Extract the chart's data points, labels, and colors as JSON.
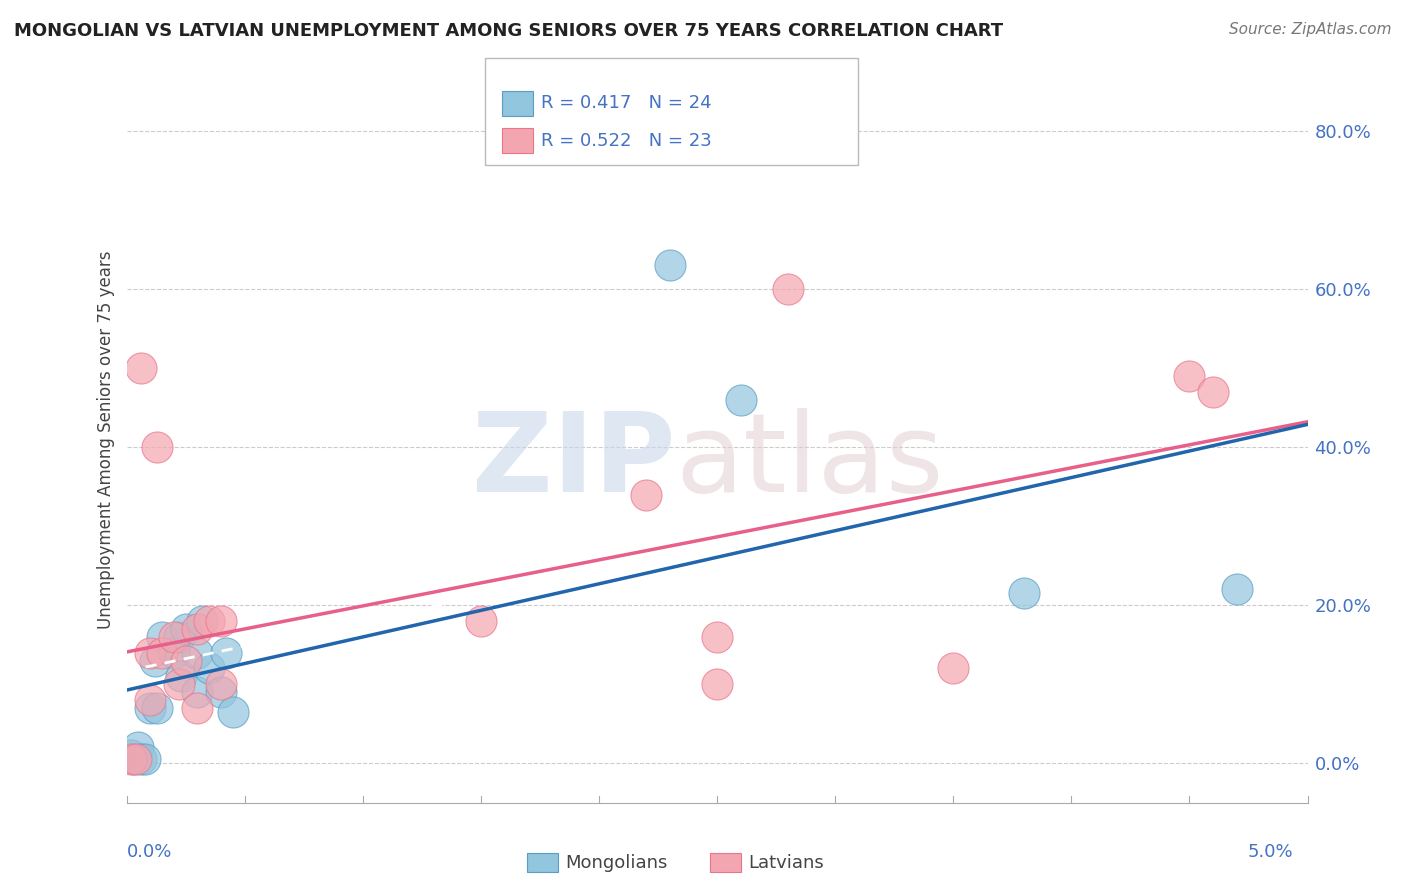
{
  "title": "MONGOLIAN VS LATVIAN UNEMPLOYMENT AMONG SENIORS OVER 75 YEARS CORRELATION CHART",
  "source": "Source: ZipAtlas.com",
  "ylabel": "Unemployment Among Seniors over 75 years",
  "ytick_labels": [
    "0.0%",
    "20.0%",
    "40.0%",
    "60.0%",
    "80.0%"
  ],
  "ytick_vals": [
    0.0,
    0.2,
    0.4,
    0.6,
    0.8
  ],
  "xmin": 0.0,
  "xmax": 0.05,
  "ymin": -0.05,
  "ymax": 0.87,
  "mongolian_color": "#92c5de",
  "mongolian_edge": "#5a9dc5",
  "latvian_color": "#f4a6b0",
  "latvian_edge": "#e8758a",
  "mongolian_line_color": "#2166ac",
  "latvian_line_color": "#e8608a",
  "mongolian_R": 0.417,
  "mongolian_N": 24,
  "latvian_R": 0.522,
  "latvian_N": 23,
  "legend_label_mongolians": "Mongolians",
  "legend_label_latvians": "Latvians",
  "mongolian_x": [
    0.0002,
    0.0003,
    0.0005,
    0.0006,
    0.0008,
    0.001,
    0.0012,
    0.0013,
    0.0015,
    0.002,
    0.0022,
    0.0023,
    0.0025,
    0.003,
    0.003,
    0.0032,
    0.0035,
    0.004,
    0.0042,
    0.0045,
    0.023,
    0.026,
    0.038,
    0.047
  ],
  "mongolian_y": [
    0.01,
    0.005,
    0.02,
    0.005,
    0.005,
    0.07,
    0.13,
    0.07,
    0.16,
    0.14,
    0.16,
    0.11,
    0.17,
    0.09,
    0.14,
    0.18,
    0.12,
    0.09,
    0.14,
    0.065,
    0.63,
    0.46,
    0.215,
    0.22
  ],
  "latvian_x": [
    0.0002,
    0.0004,
    0.0006,
    0.001,
    0.001,
    0.0013,
    0.0015,
    0.002,
    0.0022,
    0.0025,
    0.003,
    0.003,
    0.0035,
    0.004,
    0.004,
    0.015,
    0.022,
    0.025,
    0.025,
    0.028,
    0.035,
    0.045,
    0.046
  ],
  "latvian_y": [
    0.005,
    0.005,
    0.5,
    0.14,
    0.08,
    0.4,
    0.14,
    0.16,
    0.1,
    0.13,
    0.17,
    0.07,
    0.18,
    0.18,
    0.1,
    0.18,
    0.34,
    0.1,
    0.16,
    0.6,
    0.12,
    0.49,
    0.47
  ]
}
